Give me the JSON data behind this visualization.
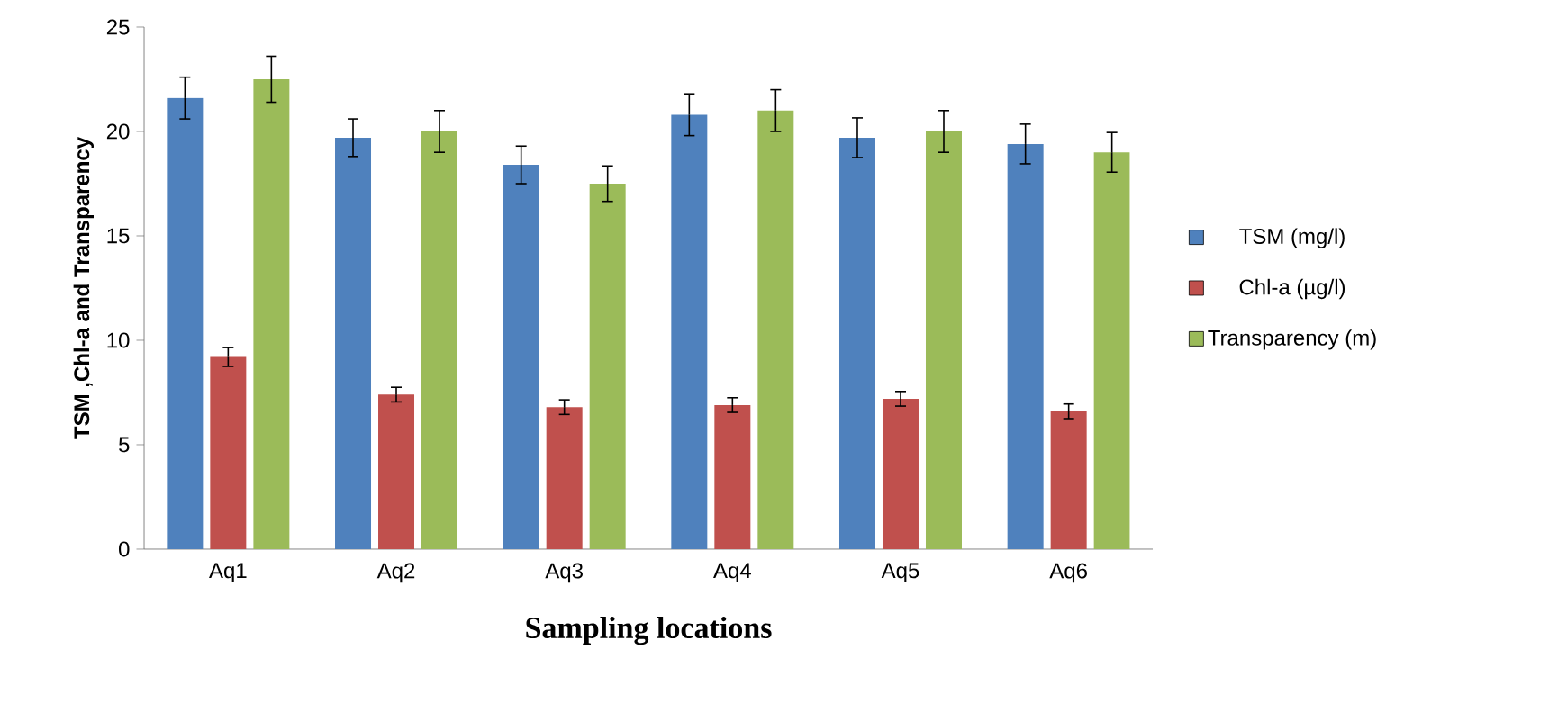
{
  "chart_data": {
    "type": "bar",
    "xlabel": "Sampling locations",
    "ylabel": "TSM ,Chl-a and Transparency",
    "categories": [
      "Aq1",
      "Aq2",
      "Aq3",
      "Aq4",
      "Aq5",
      "Aq6"
    ],
    "series": [
      {
        "name": "TSM  (mg/l)",
        "color": "#4f81bd",
        "values": [
          21.6,
          19.7,
          18.4,
          20.8,
          19.7,
          19.4
        ],
        "errors": [
          1.0,
          0.9,
          0.9,
          1.0,
          0.95,
          0.95
        ]
      },
      {
        "name": "Chl-a  (µg/l)",
        "color": "#c0504d",
        "values": [
          9.2,
          7.4,
          6.8,
          6.9,
          7.2,
          6.6
        ],
        "errors": [
          0.45,
          0.35,
          0.35,
          0.35,
          0.35,
          0.35
        ]
      },
      {
        "name": "Transparency (m)",
        "color": "#9bbb59",
        "values": [
          22.5,
          20.0,
          17.5,
          21.0,
          20.0,
          19.0
        ],
        "errors": [
          1.1,
          1.0,
          0.85,
          1.0,
          1.0,
          0.95
        ]
      }
    ],
    "ylim": [
      0,
      25
    ],
    "yticks": [
      0,
      5,
      10,
      15,
      20,
      25
    ],
    "legend": "right"
  }
}
